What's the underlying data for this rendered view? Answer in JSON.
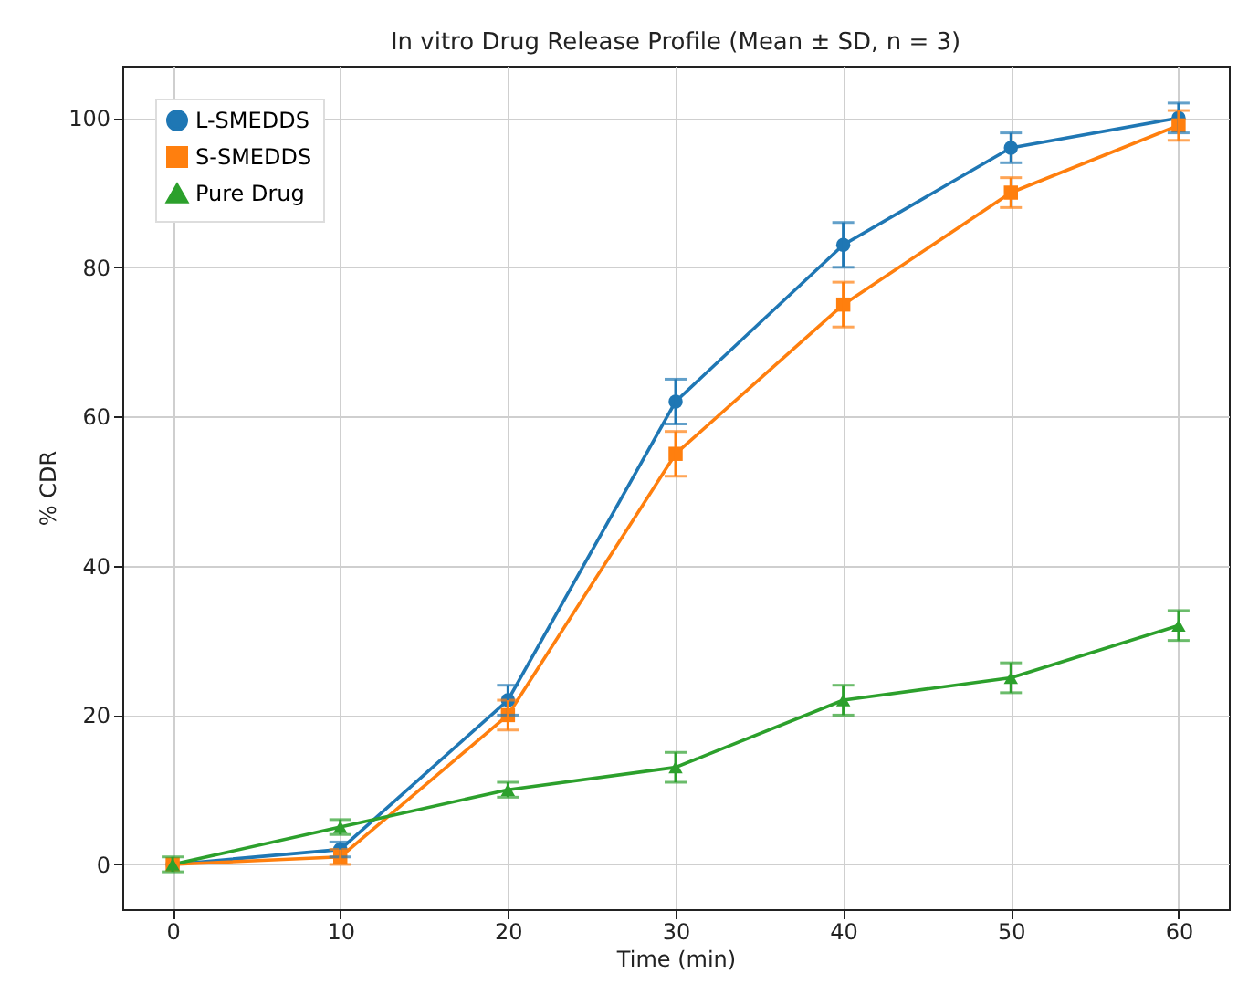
{
  "chart_data": {
    "type": "line",
    "title": "In vitro Drug Release Profile (Mean ± SD, n = 3)",
    "xlabel": "Time (min)",
    "ylabel": "% CDR",
    "x": [
      0,
      10,
      20,
      30,
      40,
      50,
      60
    ],
    "series": [
      {
        "name": "L-SMEDDS",
        "color": "#1f77b4",
        "marker": "circle",
        "values": [
          0,
          2,
          22,
          62,
          83,
          96,
          100
        ],
        "errors": [
          null,
          1,
          2,
          3,
          3,
          2,
          2
        ]
      },
      {
        "name": "S-SMEDDS",
        "color": "#ff7f0e",
        "marker": "square",
        "values": [
          0,
          1,
          20,
          55,
          75,
          90,
          99
        ],
        "errors": [
          null,
          1,
          2,
          3,
          3,
          2,
          2
        ]
      },
      {
        "name": "Pure Drug",
        "color": "#2ca02c",
        "marker": "triangle",
        "values": [
          0,
          5,
          10,
          13,
          22,
          25,
          32
        ],
        "errors": [
          1,
          1,
          1,
          2,
          2,
          2,
          2
        ]
      }
    ],
    "xlim": [
      -3,
      63
    ],
    "xticks": [
      0,
      10,
      20,
      30,
      40,
      50,
      60
    ],
    "ylim": [
      -6,
      107
    ],
    "yticks": [
      0,
      20,
      40,
      60,
      80,
      100
    ],
    "grid": true,
    "legend": "top left"
  }
}
